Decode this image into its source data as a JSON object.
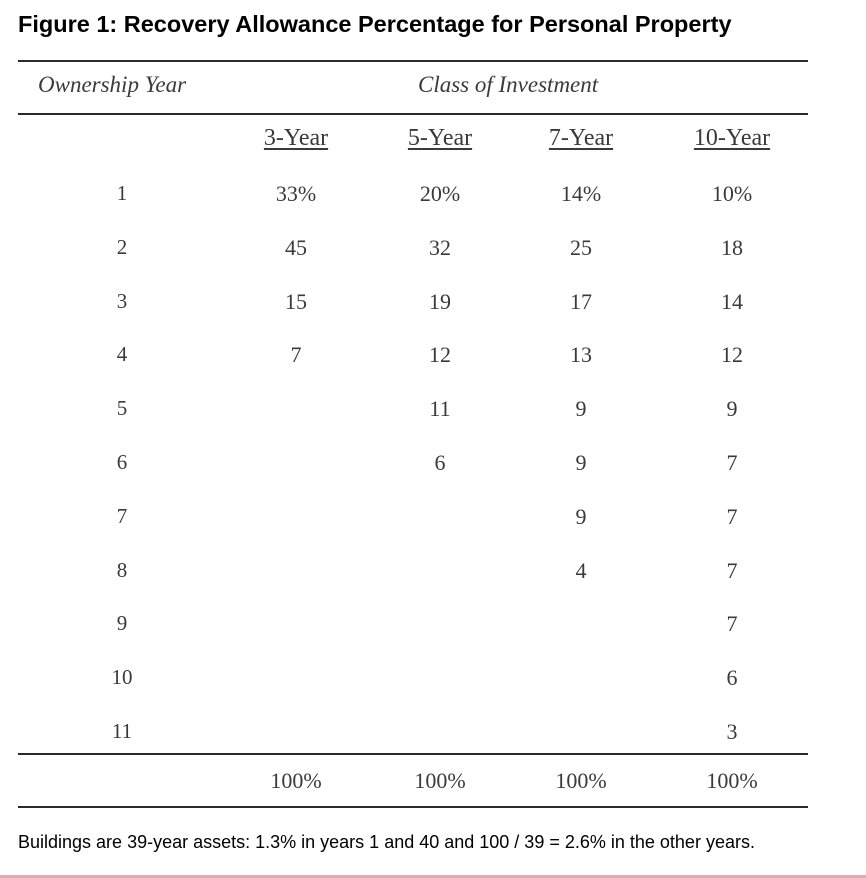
{
  "title": "Figure 1: Recovery Allowance Percentage for Personal Property",
  "header": {
    "ownership_year": "Ownership Year",
    "class_of_investment": "Class of Investment"
  },
  "columns": [
    "3-Year",
    "5-Year",
    "7-Year",
    "10-Year"
  ],
  "rows": [
    {
      "year": "1",
      "values": [
        "33%",
        "20%",
        "14%",
        "10%"
      ]
    },
    {
      "year": "2",
      "values": [
        "45",
        "32",
        "25",
        "18"
      ]
    },
    {
      "year": "3",
      "values": [
        "15",
        "19",
        "17",
        "14"
      ]
    },
    {
      "year": "4",
      "values": [
        "7",
        "12",
        "13",
        "12"
      ]
    },
    {
      "year": "5",
      "values": [
        "",
        "11",
        "9",
        "9"
      ]
    },
    {
      "year": "6",
      "values": [
        "",
        "6",
        "9",
        "7"
      ]
    },
    {
      "year": "7",
      "values": [
        "",
        "",
        "9",
        "7"
      ]
    },
    {
      "year": "8",
      "values": [
        "",
        "",
        "4",
        "7"
      ]
    },
    {
      "year": "9",
      "values": [
        "",
        "",
        "",
        "7"
      ]
    },
    {
      "year": "10",
      "values": [
        "",
        "",
        "",
        "6"
      ]
    },
    {
      "year": "11",
      "values": [
        "",
        "",
        "",
        "3"
      ]
    }
  ],
  "totals": [
    "100%",
    "100%",
    "100%",
    "100%"
  ],
  "footnote": "Buildings are 39-year assets: 1.3% in years 1 and 40 and 100 / 39 = 2.6% in the other years."
}
